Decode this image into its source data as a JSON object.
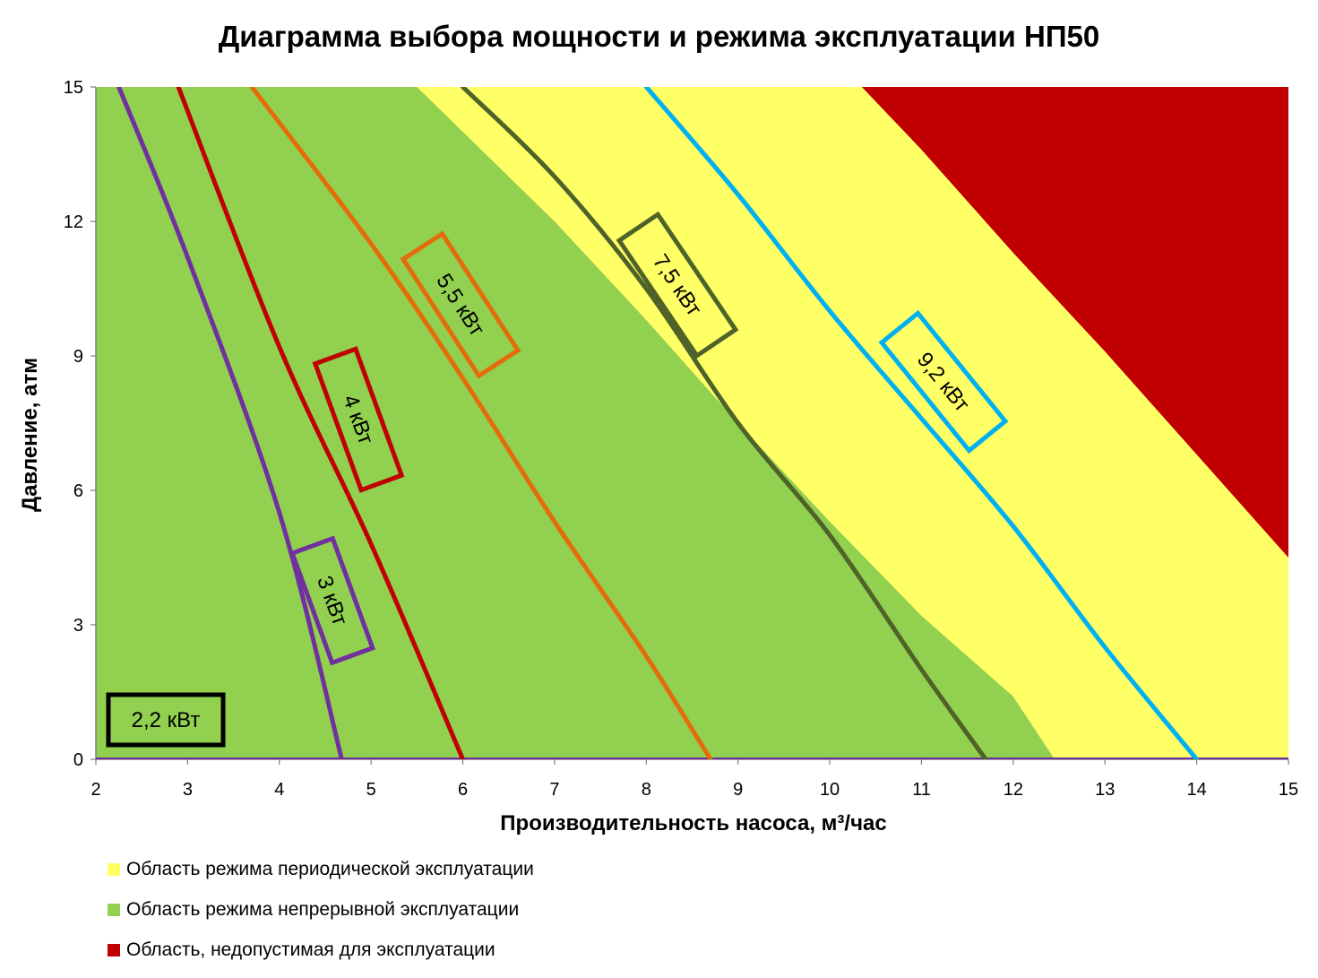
{
  "chart_data": {
    "type": "area",
    "title": "Диаграмма выбора мощности и режима эксплуатации НП50",
    "xlabel": "Производительность насоса, м³/час",
    "ylabel": "Давление, атм",
    "xlim": [
      2,
      15
    ],
    "ylim": [
      0,
      15
    ],
    "x_ticks": [
      "2",
      "3",
      "4",
      "5",
      "6",
      "7",
      "8",
      "9",
      "10",
      "11",
      "12",
      "13",
      "14",
      "15"
    ],
    "y_ticks": [
      "0",
      "3",
      "6",
      "9",
      "12",
      "15"
    ],
    "grid": false,
    "legend_position": "bottom-left",
    "regions": [
      {
        "name": "Область режима периодической эксплуатации",
        "color": "#ffff66",
        "boundary": [
          [
            2,
            15
          ],
          [
            15,
            15
          ],
          [
            15,
            0
          ],
          [
            2,
            0
          ]
        ]
      },
      {
        "name": "Область режима непрерывной эксплуатации",
        "color": "#92d050",
        "boundary": [
          [
            2,
            0
          ],
          [
            2,
            15
          ],
          [
            5.5,
            15
          ],
          [
            6,
            14
          ],
          [
            7,
            12
          ],
          [
            8,
            9.8
          ],
          [
            9,
            7.5
          ],
          [
            10,
            5.3
          ],
          [
            11,
            3.2
          ],
          [
            12,
            1.4
          ],
          [
            12.45,
            0
          ]
        ]
      },
      {
        "name": "Область, недопустимая для эксплуатации",
        "color": "#c00000",
        "boundary": [
          [
            10.35,
            15
          ],
          [
            11,
            13.6
          ],
          [
            12,
            11.3
          ],
          [
            13,
            9.1
          ],
          [
            14,
            6.8
          ],
          [
            15,
            4.5
          ],
          [
            15,
            15
          ]
        ]
      }
    ],
    "series": [
      {
        "name": "2,2 кВт",
        "label": "2,2 кВт",
        "color": "#7030a0",
        "x": [
          2,
          15
        ],
        "y": [
          0,
          0
        ]
      },
      {
        "name": "3 кВт",
        "label": "3 кВт",
        "color": "#7030a0",
        "x": [
          2.25,
          3,
          4,
          4.68
        ],
        "y": [
          15,
          11.2,
          5.5,
          0
        ]
      },
      {
        "name": "4 кВт",
        "label": "4 кВт",
        "color": "#c00000",
        "x": [
          2.9,
          4,
          5,
          6
        ],
        "y": [
          15,
          9.2,
          4.8,
          0
        ]
      },
      {
        "name": "5,5 кВт",
        "label": "5,5 кВт",
        "color": "#e46c0a",
        "x": [
          3.7,
          5,
          6,
          7,
          8,
          8.7
        ],
        "y": [
          15,
          11.5,
          8.5,
          5.3,
          2.3,
          0
        ]
      },
      {
        "name": "7,5 кВт",
        "label": "7,5 кВт",
        "color": "#4f6228",
        "x": [
          6,
          7,
          8,
          9,
          10,
          11,
          11.7
        ],
        "y": [
          15,
          13,
          10.5,
          7.5,
          5,
          2,
          0
        ]
      },
      {
        "name": "9,2 кВт",
        "label": "9,2 кВт",
        "color": "#00b0f0",
        "x": [
          8,
          9,
          10,
          11,
          12,
          13,
          14
        ],
        "y": [
          15,
          12.6,
          10,
          7.6,
          5.2,
          2.5,
          0
        ]
      }
    ]
  }
}
